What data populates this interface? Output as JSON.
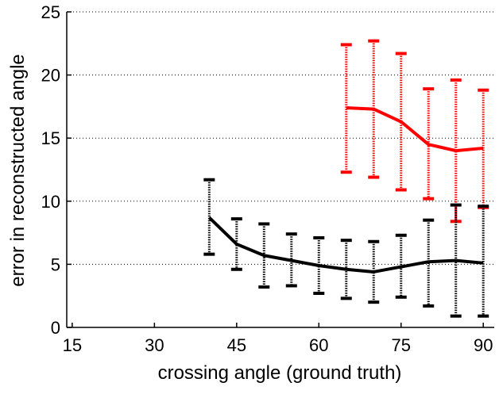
{
  "chart_data": {
    "type": "line",
    "title": "",
    "xlabel": "crossing angle (ground truth)",
    "ylabel": "error in reconstructed angle",
    "xlim": [
      14,
      92
    ],
    "ylim": [
      0,
      25
    ],
    "xticks": [
      15,
      30,
      45,
      60,
      75,
      90
    ],
    "yticks": [
      0,
      5,
      10,
      15,
      20,
      25
    ],
    "grid": "horizontal dotted",
    "legend": "none",
    "series": [
      {
        "color": "#ff0000",
        "x": [
          65,
          70,
          75,
          80,
          85,
          90
        ],
        "y": [
          17.4,
          17.3,
          16.3,
          14.5,
          14.0,
          14.2
        ],
        "lower": [
          12.3,
          11.9,
          10.9,
          10.2,
          8.4,
          9.5
        ],
        "upper": [
          22.4,
          22.7,
          21.7,
          18.9,
          19.6,
          18.8
        ]
      },
      {
        "color": "#000000",
        "x": [
          40,
          45,
          50,
          55,
          60,
          65,
          70,
          75,
          80,
          85,
          90
        ],
        "y": [
          8.7,
          6.6,
          5.7,
          5.3,
          4.9,
          4.6,
          4.4,
          4.8,
          5.2,
          5.3,
          5.1
        ],
        "lower": [
          5.8,
          4.6,
          3.2,
          3.3,
          2.7,
          2.3,
          2.0,
          2.4,
          1.7,
          0.9,
          0.9
        ],
        "upper": [
          11.7,
          8.6,
          8.2,
          7.4,
          7.1,
          6.9,
          6.8,
          7.3,
          8.5,
          9.7,
          9.6
        ]
      }
    ]
  }
}
